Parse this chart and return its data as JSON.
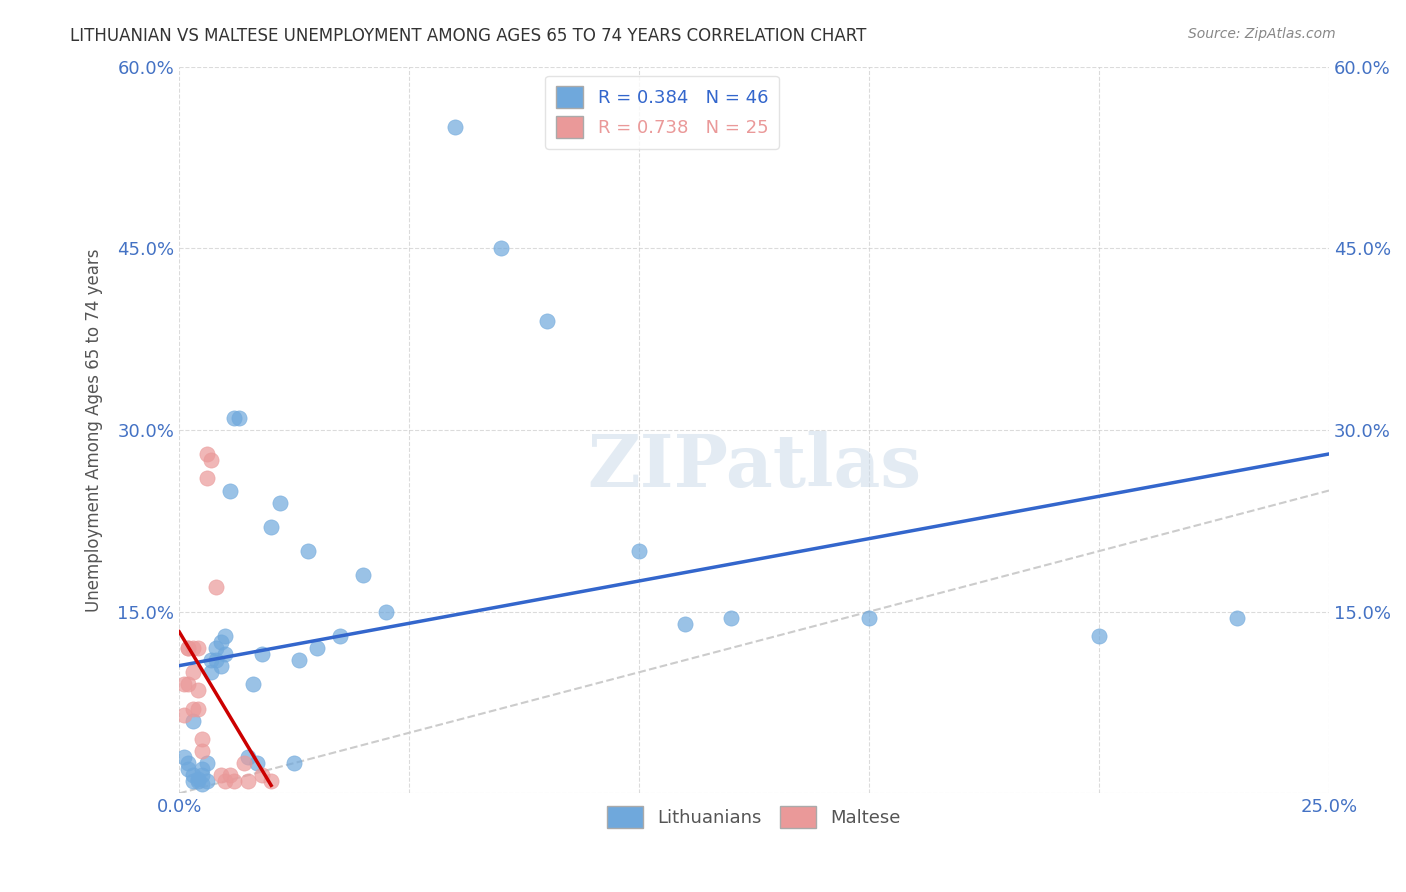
{
  "title": "LITHUANIAN VS MALTESE UNEMPLOYMENT AMONG AGES 65 TO 74 YEARS CORRELATION CHART",
  "source": "Source: ZipAtlas.com",
  "ylabel": "Unemployment Among Ages 65 to 74 years",
  "xlabel": "",
  "xlim": [
    0.0,
    0.25
  ],
  "ylim": [
    0.0,
    0.6
  ],
  "xticks": [
    0.0,
    0.05,
    0.1,
    0.15,
    0.2,
    0.25
  ],
  "yticks": [
    0.0,
    0.15,
    0.3,
    0.45,
    0.6
  ],
  "xticklabels": [
    "0.0%",
    "",
    "",
    "",
    "",
    "25.0%"
  ],
  "yticklabels": [
    "",
    "15.0%",
    "30.0%",
    "45.0%",
    "60.0%"
  ],
  "lithuanian_r": 0.384,
  "lithuanian_n": 46,
  "maltese_r": 0.738,
  "maltese_n": 25,
  "lithuanian_color": "#6fa8dc",
  "maltese_color": "#ea9999",
  "line_color_lit": "#3366cc",
  "line_color_malt": "#cc0000",
  "diag_color": "#cccccc",
  "watermark": "ZIPatlas",
  "background": "#ffffff",
  "lit_x": [
    0.001,
    0.002,
    0.002,
    0.003,
    0.003,
    0.003,
    0.004,
    0.004,
    0.005,
    0.005,
    0.005,
    0.006,
    0.006,
    0.007,
    0.007,
    0.008,
    0.008,
    0.009,
    0.009,
    0.01,
    0.01,
    0.011,
    0.012,
    0.013,
    0.015,
    0.016,
    0.017,
    0.018,
    0.02,
    0.022,
    0.025,
    0.026,
    0.028,
    0.03,
    0.035,
    0.04,
    0.045,
    0.06,
    0.07,
    0.08,
    0.1,
    0.11,
    0.12,
    0.15,
    0.2,
    0.23
  ],
  "lit_y": [
    0.03,
    0.02,
    0.025,
    0.01,
    0.015,
    0.06,
    0.01,
    0.012,
    0.008,
    0.015,
    0.02,
    0.025,
    0.01,
    0.1,
    0.11,
    0.12,
    0.11,
    0.125,
    0.105,
    0.13,
    0.115,
    0.25,
    0.31,
    0.31,
    0.03,
    0.09,
    0.025,
    0.115,
    0.22,
    0.24,
    0.025,
    0.11,
    0.2,
    0.12,
    0.13,
    0.18,
    0.15,
    0.55,
    0.45,
    0.39,
    0.2,
    0.14,
    0.145,
    0.145,
    0.13,
    0.145
  ],
  "malt_x": [
    0.001,
    0.001,
    0.002,
    0.002,
    0.002,
    0.003,
    0.003,
    0.003,
    0.004,
    0.004,
    0.004,
    0.005,
    0.005,
    0.006,
    0.006,
    0.007,
    0.008,
    0.009,
    0.01,
    0.011,
    0.012,
    0.014,
    0.015,
    0.018,
    0.02
  ],
  "malt_y": [
    0.065,
    0.09,
    0.09,
    0.12,
    0.12,
    0.1,
    0.12,
    0.07,
    0.12,
    0.07,
    0.085,
    0.035,
    0.045,
    0.26,
    0.28,
    0.275,
    0.17,
    0.015,
    0.01,
    0.015,
    0.01,
    0.025,
    0.01,
    0.015,
    0.01
  ]
}
